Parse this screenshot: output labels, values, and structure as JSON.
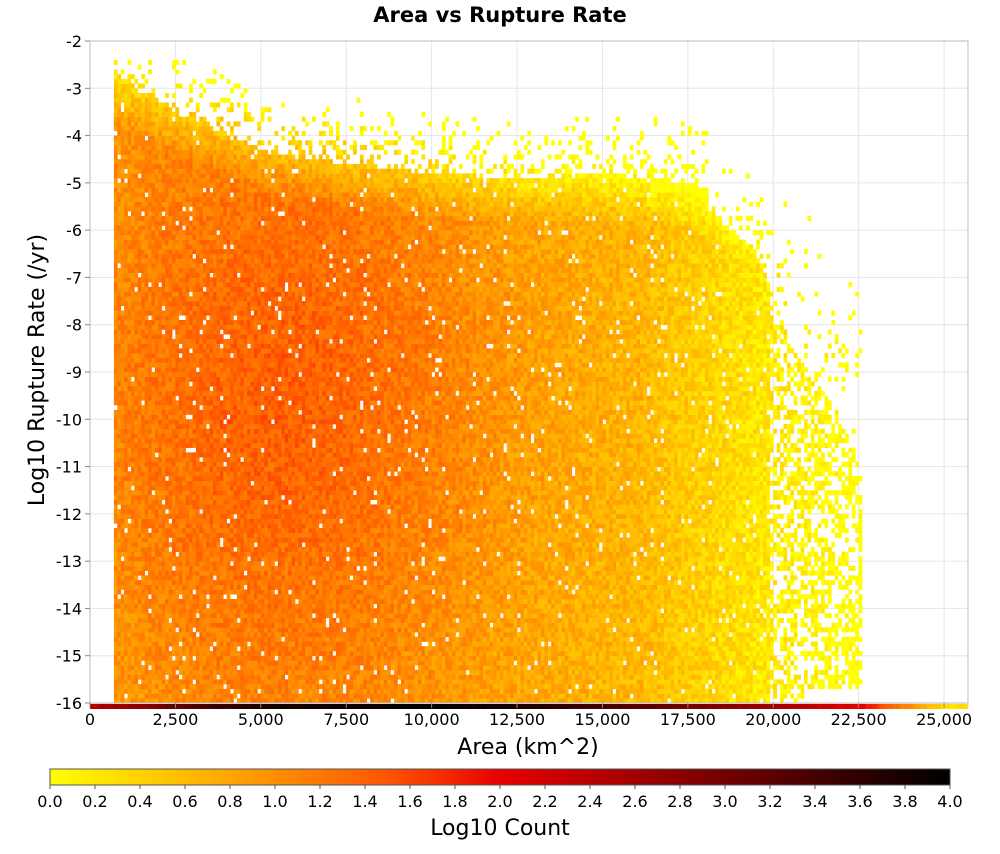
{
  "chart_data": {
    "type": "heatmap",
    "title": "Area vs Rupture Rate",
    "xlabel": "Area (km^2)",
    "ylabel": "Log10 Rupture Rate (/yr)",
    "xlim": [
      0,
      25700
    ],
    "ylim": [
      -16,
      -2
    ],
    "x_ticks": [
      "0",
      "2,500",
      "5,000",
      "7,500",
      "10,000",
      "12,500",
      "15,000",
      "17,500",
      "20,000",
      "22,500",
      "25,000"
    ],
    "y_ticks": [
      "-2",
      "-3",
      "-4",
      "-5",
      "-6",
      "-7",
      "-8",
      "-9",
      "-10",
      "-11",
      "-12",
      "-13",
      "-14",
      "-15",
      "-16"
    ],
    "grid": true,
    "bin_width_x": 100,
    "bin_height_y": 0.1,
    "colorbar": {
      "label": "Log10 Count",
      "range": [
        0.0,
        4.0
      ],
      "ticks": [
        "0.0",
        "0.2",
        "0.4",
        "0.6",
        "0.8",
        "1.0",
        "1.2",
        "1.4",
        "1.6",
        "1.8",
        "2.0",
        "2.2",
        "2.4",
        "2.6",
        "2.8",
        "3.0",
        "3.2",
        "3.4",
        "3.6",
        "3.8",
        "4.0"
      ],
      "colors": [
        "#ffff00",
        "#ffa500",
        "#ff5500",
        "#e80000",
        "#8a0000",
        "#000000"
      ]
    },
    "density_profile": {
      "description_points_x": [
        800,
        2500,
        5000,
        7500,
        10000,
        12500,
        15000,
        17500,
        20000,
        22500,
        25000
      ],
      "max_log10_rate_edge": [
        -2.8,
        -3.5,
        -4.3,
        -4.6,
        -4.8,
        -4.9,
        -4.8,
        -5.0,
        -5.9,
        -7.9,
        -16
      ],
      "peak_log10_count_at_-16": [
        2.6,
        3.2,
        3.8,
        3.9,
        4.0,
        3.8,
        3.4,
        3.0,
        2.6,
        2.0,
        0.3
      ]
    }
  }
}
